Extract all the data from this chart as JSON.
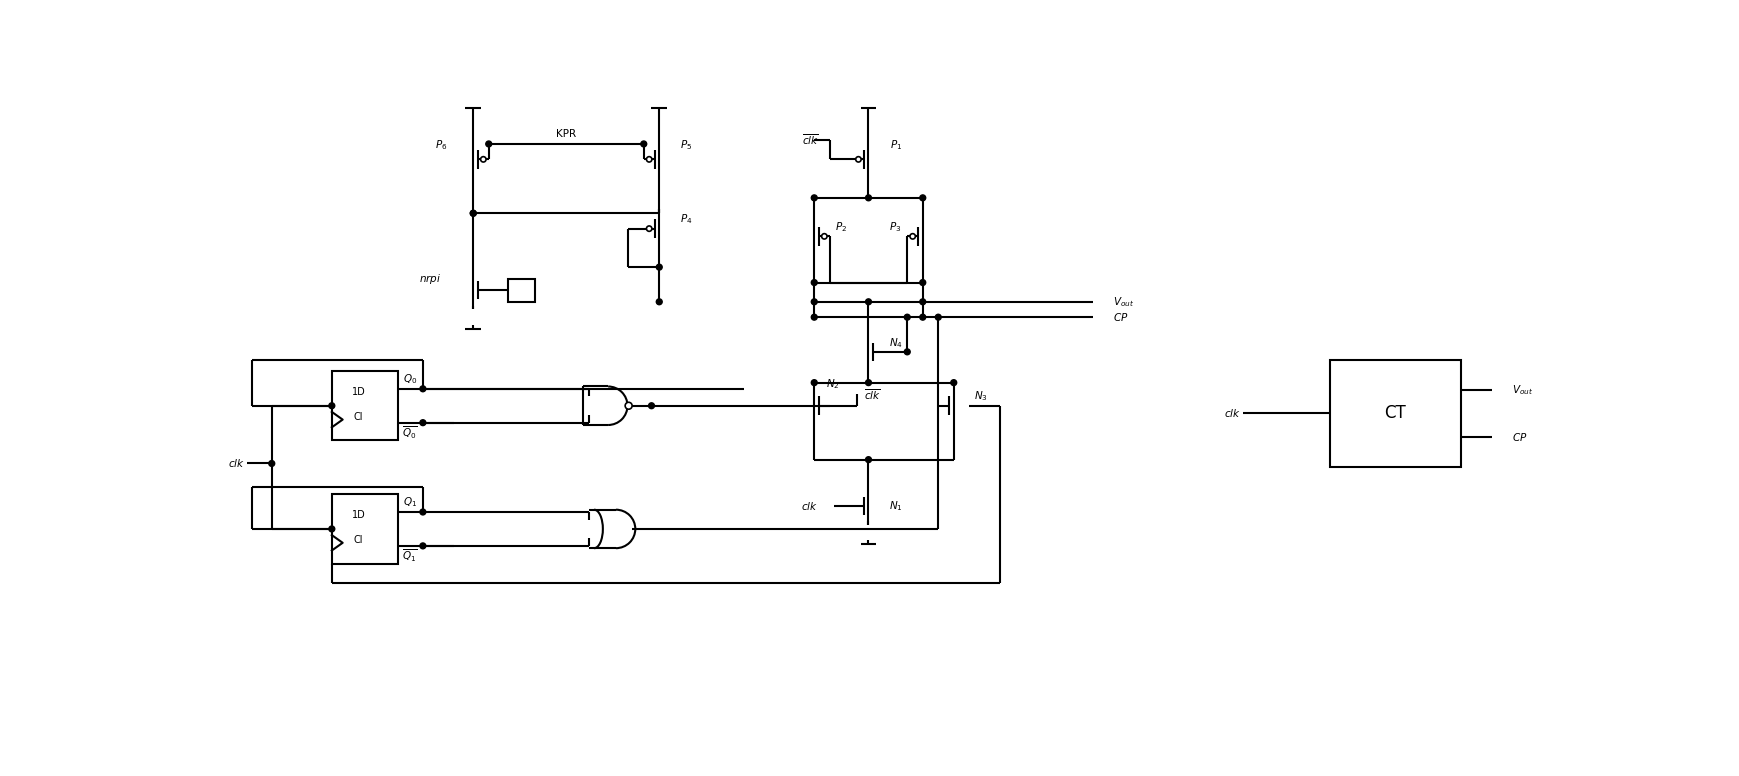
{
  "bg": "#ffffff",
  "lc": "black",
  "lw": 1.5,
  "fw": 17.4,
  "fh": 7.76,
  "xlim": [
    0,
    174
  ],
  "ylim": [
    0,
    77.6
  ]
}
